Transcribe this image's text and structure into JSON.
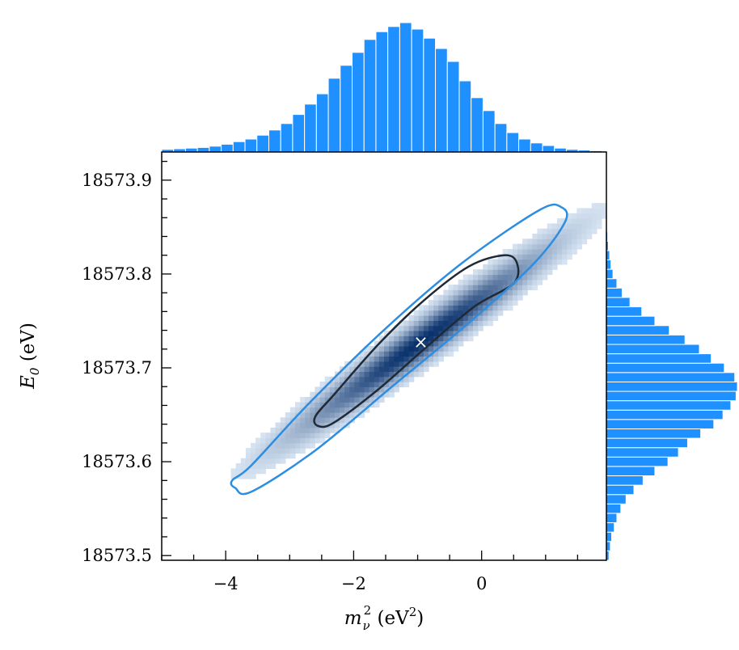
{
  "chart_data": {
    "type": "heatmap",
    "title": "",
    "xlabel": "m_ν² (eV²)",
    "ylabel": "E_0 (eV)",
    "xlabel_parts": {
      "main": "m",
      "sub": "ν",
      "sup": "2",
      "unit_open": " (eV",
      "unit_sup": "2",
      "unit_close": ")"
    },
    "ylabel_parts": {
      "main": "E",
      "sub": "0",
      "unit": " (eV)"
    },
    "xlim": [
      -5.0,
      1.95
    ],
    "ylim": [
      18573.495,
      18573.93
    ],
    "x_ticks": [
      {
        "value": -4,
        "label": "−4"
      },
      {
        "value": -2,
        "label": "−2"
      },
      {
        "value": 0,
        "label": "0"
      }
    ],
    "y_ticks": [
      {
        "value": 18573.5,
        "label": "18573.5"
      },
      {
        "value": 18573.6,
        "label": "18573.6"
      },
      {
        "value": 18573.7,
        "label": "18573.7"
      },
      {
        "value": 18573.8,
        "label": "18573.8"
      },
      {
        "value": 18573.9,
        "label": "18573.9"
      }
    ],
    "best_fit": {
      "x": -0.95,
      "y": 18573.728,
      "marker": "×"
    },
    "correlation": {
      "center": [
        -0.95,
        18573.728
      ],
      "sigma_x": 1.0,
      "sigma_y": 0.05,
      "rho": 0.97
    },
    "contours": [
      {
        "level": "1σ",
        "color": "#1f2a36",
        "points": [
          [
            -2.55,
            18573.638
          ],
          [
            -2.3,
            18573.642
          ],
          [
            -1.6,
            18573.678
          ],
          [
            -0.8,
            18573.726
          ],
          [
            -0.1,
            18573.766
          ],
          [
            0.5,
            18573.79
          ],
          [
            0.55,
            18573.812
          ],
          [
            0.35,
            18573.82
          ],
          [
            -0.2,
            18573.808
          ],
          [
            -0.9,
            18573.772
          ],
          [
            -1.6,
            18573.726
          ],
          [
            -2.3,
            18573.672
          ],
          [
            -2.6,
            18573.648
          ]
        ]
      },
      {
        "level": "2σ",
        "color": "#2d8de0",
        "points": [
          [
            -3.85,
            18573.572
          ],
          [
            -3.6,
            18573.568
          ],
          [
            -2.6,
            18573.612
          ],
          [
            -1.4,
            18573.68
          ],
          [
            -0.2,
            18573.748
          ],
          [
            0.8,
            18573.81
          ],
          [
            1.3,
            18573.855
          ],
          [
            1.25,
            18573.871
          ],
          [
            0.9,
            18573.868
          ],
          [
            -0.3,
            18573.812
          ],
          [
            -1.5,
            18573.742
          ],
          [
            -2.7,
            18573.662
          ],
          [
            -3.6,
            18573.596
          ],
          [
            -3.9,
            18573.58
          ]
        ]
      }
    ],
    "marginal_x": {
      "bin_edges_start": -5.0,
      "bin_width": 0.186,
      "counts": [
        0.02,
        0.025,
        0.03,
        0.035,
        0.045,
        0.06,
        0.08,
        0.1,
        0.13,
        0.17,
        0.22,
        0.29,
        0.37,
        0.45,
        0.57,
        0.67,
        0.77,
        0.87,
        0.93,
        0.97,
        1.0,
        0.95,
        0.88,
        0.8,
        0.7,
        0.55,
        0.42,
        0.32,
        0.22,
        0.15,
        0.1,
        0.07,
        0.05,
        0.03,
        0.02,
        0.015,
        0.01
      ]
    },
    "marginal_y": {
      "bin_edges_start": 18573.495,
      "bin_width": 0.01,
      "counts": [
        0.02,
        0.03,
        0.04,
        0.06,
        0.08,
        0.11,
        0.15,
        0.21,
        0.28,
        0.37,
        0.47,
        0.55,
        0.62,
        0.72,
        0.82,
        0.89,
        0.95,
        0.99,
        1.0,
        0.98,
        0.9,
        0.8,
        0.71,
        0.6,
        0.48,
        0.37,
        0.27,
        0.18,
        0.12,
        0.08,
        0.05,
        0.035,
        0.025,
        0.015,
        0.01,
        0.005,
        0.004,
        0.003,
        0.002,
        0.002,
        0.001,
        0.001,
        0.001
      ]
    },
    "colors": {
      "histogram": "#1e90ff",
      "histogram_edge": "#ffffff",
      "heatmap_low": "#e6f1fc",
      "heatmap_high": "#08306b",
      "contour_1sigma": "#1f2a36",
      "contour_2sigma": "#2d8de0",
      "marker": "#ffffff"
    },
    "grid": false,
    "legend": "none"
  }
}
